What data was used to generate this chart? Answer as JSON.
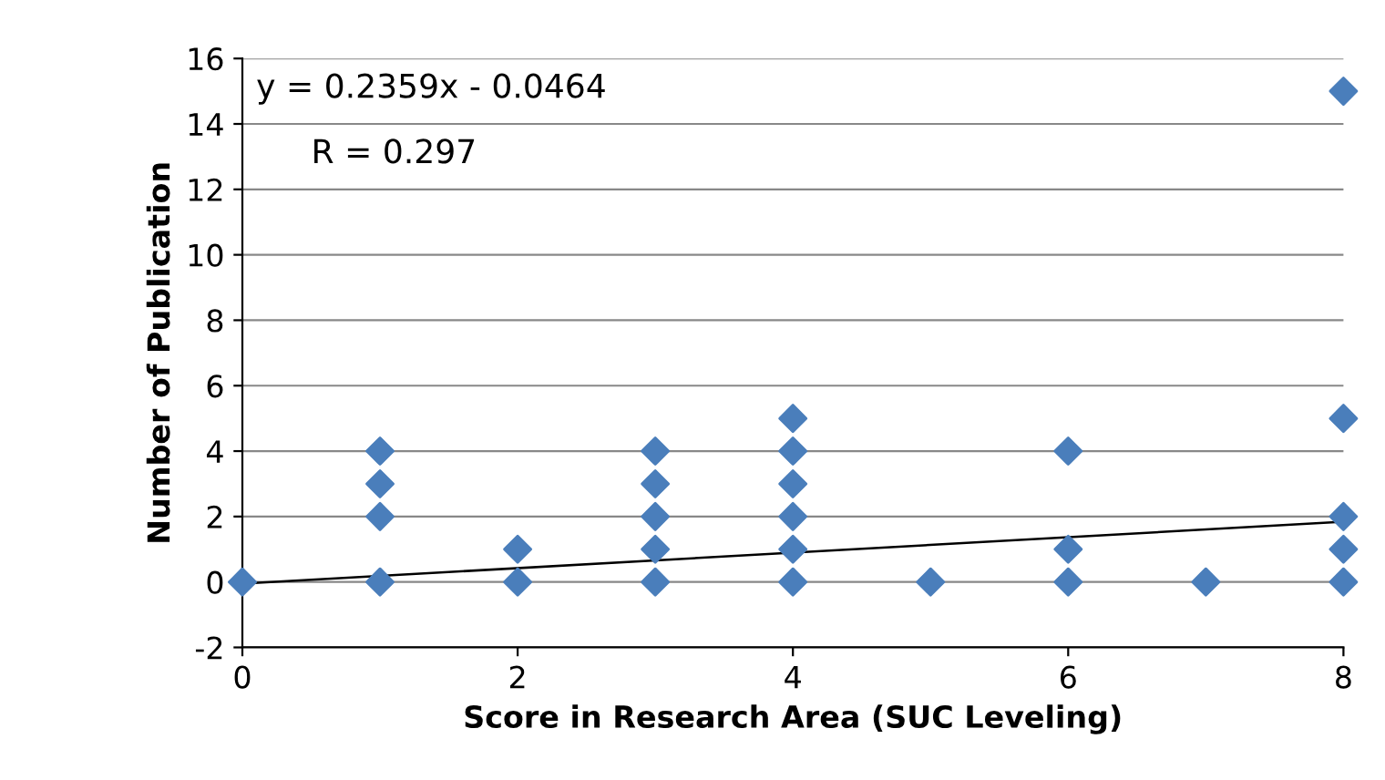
{
  "chart_data": {
    "type": "scatter",
    "xlabel": "Score in Research Area (SUC Leveling)",
    "ylabel": "Number of Publication",
    "annotations": [
      "y = 0.2359x - 0.0464",
      "R = 0.297"
    ],
    "series": [
      {
        "color": "#4a7ebb",
        "marker": "diamond",
        "x": [
          0,
          1,
          1,
          1,
          1,
          2,
          2,
          3,
          3,
          3,
          3,
          3,
          4,
          4,
          4,
          4,
          4,
          4,
          5,
          6,
          6,
          6,
          7,
          8,
          8,
          8,
          8,
          8
        ],
        "values": [
          0,
          0,
          2,
          3,
          4,
          0,
          1,
          0,
          1,
          2,
          3,
          4,
          0,
          1,
          2,
          3,
          4,
          5,
          0,
          0,
          1,
          4,
          0,
          0,
          1,
          2,
          5,
          15
        ]
      },
      {
        "type": "line",
        "color": "#000000",
        "marker": "none",
        "x": [
          0,
          8
        ],
        "values": [
          -0.05,
          1.84
        ]
      }
    ],
    "xlim": [
      0,
      8
    ],
    "xticks": [
      0,
      2,
      4,
      6,
      8
    ],
    "ylim": [
      -2,
      16
    ],
    "yticks": [
      -2,
      0,
      2,
      4,
      6,
      8,
      10,
      12,
      14,
      16
    ],
    "grid": "y",
    "legend": false
  }
}
